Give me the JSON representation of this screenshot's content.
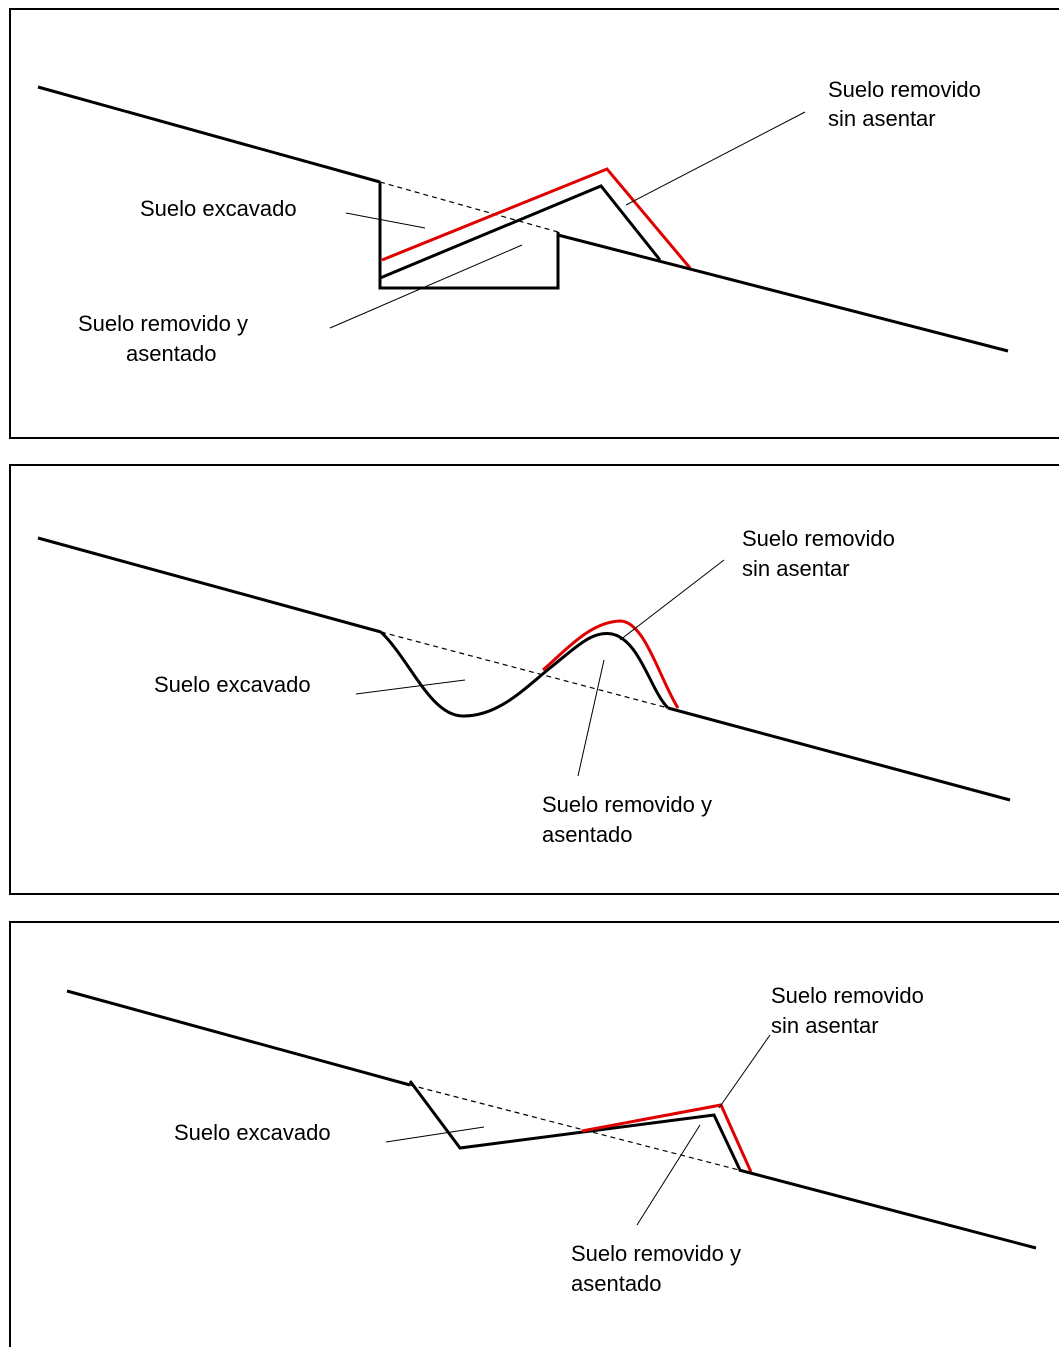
{
  "colors": {
    "line": "#000000",
    "unsettled": "#e00000"
  },
  "panels": [
    {
      "id": "panel-1",
      "profile": "rectangular-cut",
      "labels": {
        "unsettled": [
          "Suelo removido",
          "sin asentar"
        ],
        "excavated": [
          "Suelo excavado"
        ],
        "settled": [
          "Suelo removido y",
          "asentado"
        ]
      }
    },
    {
      "id": "panel-2",
      "profile": "curved-cut",
      "labels": {
        "unsettled": [
          "Suelo removido",
          "sin asentar"
        ],
        "excavated": [
          "Suelo excavado"
        ],
        "settled": [
          "Suelo removido y",
          "asentado"
        ]
      }
    },
    {
      "id": "panel-3",
      "profile": "trapezoidal-cut",
      "labels": {
        "unsettled": [
          "Suelo removido",
          "sin asentar"
        ],
        "excavated": [
          "Suelo excavado"
        ],
        "settled": [
          "Suelo removido y",
          "asentado"
        ]
      }
    }
  ]
}
